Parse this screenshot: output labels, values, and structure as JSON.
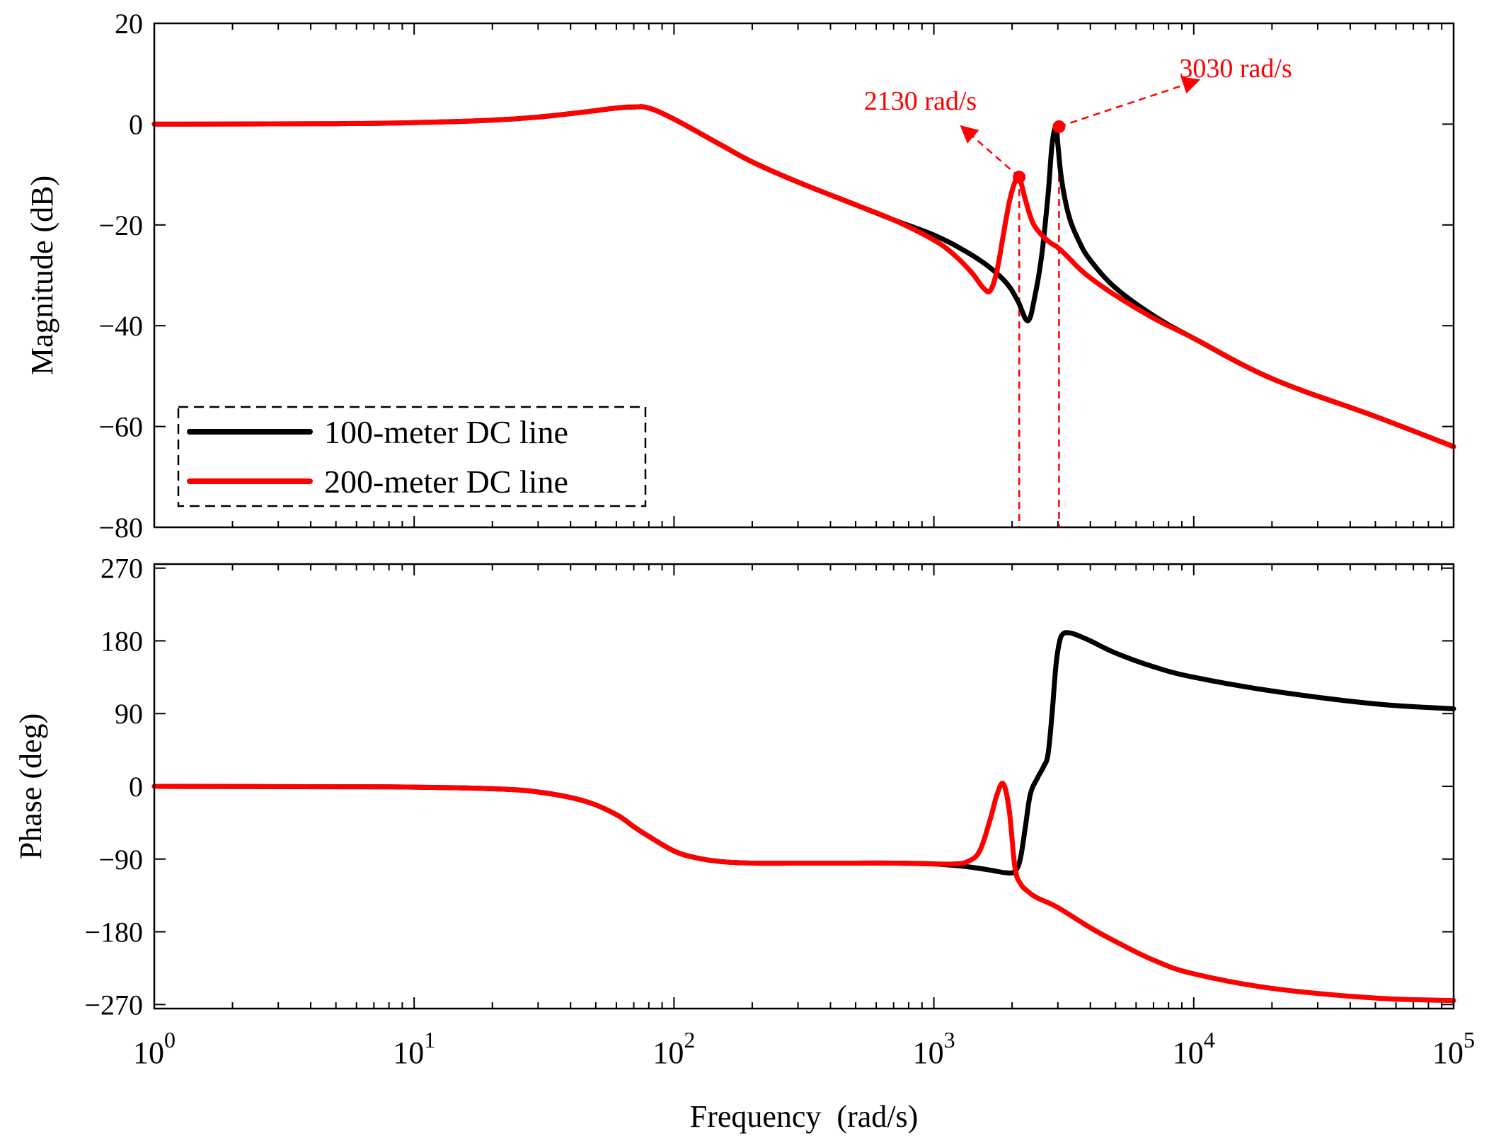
{
  "chart_data": [
    {
      "type": "line",
      "panel": "magnitude",
      "title": "",
      "xlabel": "",
      "ylabel": "Magnitude (dB)",
      "xscale": "log",
      "xlim": [
        1,
        100000
      ],
      "ylim": [
        -80,
        20
      ],
      "yticks": [
        20,
        0,
        -20,
        -40,
        -60,
        -80
      ],
      "ytick_labels": [
        "20",
        "0",
        "−20",
        "−40",
        "−60",
        "−80"
      ],
      "grid": false,
      "legend": {
        "position": "bottom-left",
        "entries": [
          {
            "label": "100-meter DC line",
            "color": "#000000"
          },
          {
            "label": "200-meter DC line",
            "color": "#ff0000"
          }
        ]
      },
      "series": [
        {
          "name": "100-meter DC line",
          "color": "#000000",
          "x": [
            1,
            5,
            10,
            20,
            30,
            45,
            60,
            70,
            80,
            100,
            150,
            200,
            300,
            500,
            700,
            1000,
            1300,
            1600,
            1900,
            2100,
            2300,
            2450,
            2600,
            2750,
            2850,
            2950,
            3000,
            3100,
            3300,
            3600,
            4000,
            5000,
            7000,
            10000,
            20000,
            50000,
            100000
          ],
          "y": [
            0,
            0.1,
            0.3,
            0.8,
            1.4,
            2.4,
            3.2,
            3.4,
            3.2,
            1.0,
            -4.0,
            -7.5,
            -11.5,
            -16.0,
            -19.0,
            -22.0,
            -25.0,
            -28.0,
            -31.5,
            -35.0,
            -39.0,
            -34.0,
            -26.0,
            -14.0,
            -4.0,
            -0.5,
            -4.0,
            -11.0,
            -18.0,
            -23.0,
            -27.0,
            -32.5,
            -38.0,
            -42.5,
            -50.5,
            -58.0,
            -64.0
          ]
        },
        {
          "name": "200-meter DC line",
          "color": "#ff0000",
          "x": [
            1,
            5,
            10,
            20,
            30,
            45,
            60,
            70,
            80,
            100,
            150,
            200,
            300,
            500,
            700,
            1000,
            1200,
            1400,
            1550,
            1650,
            1750,
            1850,
            1950,
            2050,
            2130,
            2250,
            2400,
            2600,
            2800,
            3000,
            3300,
            3600,
            4000,
            5000,
            7000,
            10000,
            20000,
            50000,
            100000
          ],
          "y": [
            0,
            0.1,
            0.3,
            0.8,
            1.4,
            2.4,
            3.2,
            3.4,
            3.2,
            1.0,
            -4.0,
            -7.5,
            -11.5,
            -16.0,
            -19.0,
            -23.0,
            -26.0,
            -29.5,
            -32.5,
            -33.0,
            -29.0,
            -22.0,
            -15.5,
            -11.5,
            -10.5,
            -15.0,
            -19.5,
            -22.0,
            -23.5,
            -24.5,
            -26.5,
            -28.5,
            -30.5,
            -34.0,
            -38.5,
            -42.5,
            -50.5,
            -58.0,
            -64.0
          ]
        }
      ],
      "markers": [
        {
          "x": 2130,
          "y": -10.5,
          "label": "2130 rad/s",
          "color": "#ff0000"
        },
        {
          "x": 3030,
          "y": -0.5,
          "label": "3030 rad/s",
          "color": "#ff0000"
        }
      ]
    },
    {
      "type": "line",
      "panel": "phase",
      "title": "",
      "xlabel": "Frequency  (rad/s)",
      "ylabel": "Phase (deg)",
      "xscale": "log",
      "xlim": [
        1,
        100000
      ],
      "ylim": [
        -275,
        275
      ],
      "xticks": [
        1,
        10,
        100,
        1000,
        10000,
        100000
      ],
      "xtick_labels": [
        {
          "base": "10",
          "exp": "0"
        },
        {
          "base": "10",
          "exp": "1"
        },
        {
          "base": "10",
          "exp": "2"
        },
        {
          "base": "10",
          "exp": "3"
        },
        {
          "base": "10",
          "exp": "4"
        },
        {
          "base": "10",
          "exp": "5"
        }
      ],
      "yticks": [
        270,
        180,
        90,
        0,
        -90,
        -180,
        -270
      ],
      "ytick_labels": [
        "270",
        "180",
        "90",
        "0",
        "−90",
        "−180",
        "−270"
      ],
      "grid": false,
      "series": [
        {
          "name": "100-meter DC line",
          "color": "#000000",
          "x": [
            1,
            5,
            10,
            20,
            30,
            45,
            60,
            70,
            80,
            100,
            120,
            150,
            200,
            300,
            500,
            700,
            1000,
            1300,
            1600,
            1900,
            2050,
            2150,
            2250,
            2350,
            2500,
            2650,
            2750,
            2850,
            2950,
            3050,
            3150,
            3300,
            3500,
            4000,
            5000,
            7000,
            10000,
            20000,
            50000,
            100000
          ],
          "y": [
            0,
            -0.5,
            -1,
            -3,
            -7,
            -18,
            -35,
            -50,
            -62,
            -80,
            -88,
            -93,
            -95,
            -95,
            -95,
            -95,
            -96,
            -99,
            -103,
            -107,
            -105,
            -90,
            -50,
            -10,
            10,
            25,
            40,
            90,
            150,
            180,
            189,
            190,
            188,
            180,
            165,
            148,
            135,
            118,
            102,
            96
          ]
        },
        {
          "name": "200-meter DC line",
          "color": "#ff0000",
          "x": [
            1,
            5,
            10,
            20,
            30,
            45,
            60,
            70,
            80,
            100,
            120,
            150,
            200,
            300,
            500,
            700,
            1000,
            1200,
            1350,
            1500,
            1650,
            1750,
            1850,
            1950,
            2050,
            2150,
            2300,
            2500,
            3000,
            4000,
            5000,
            7000,
            10000,
            20000,
            50000,
            100000
          ],
          "y": [
            0,
            -0.5,
            -1,
            -3,
            -7,
            -18,
            -35,
            -50,
            -62,
            -80,
            -88,
            -93,
            -95,
            -95,
            -95,
            -95,
            -96,
            -96,
            -93,
            -80,
            -40,
            -10,
            3,
            -30,
            -100,
            -120,
            -130,
            -138,
            -150,
            -175,
            -192,
            -215,
            -232,
            -250,
            -262,
            -265
          ]
        }
      ]
    }
  ]
}
